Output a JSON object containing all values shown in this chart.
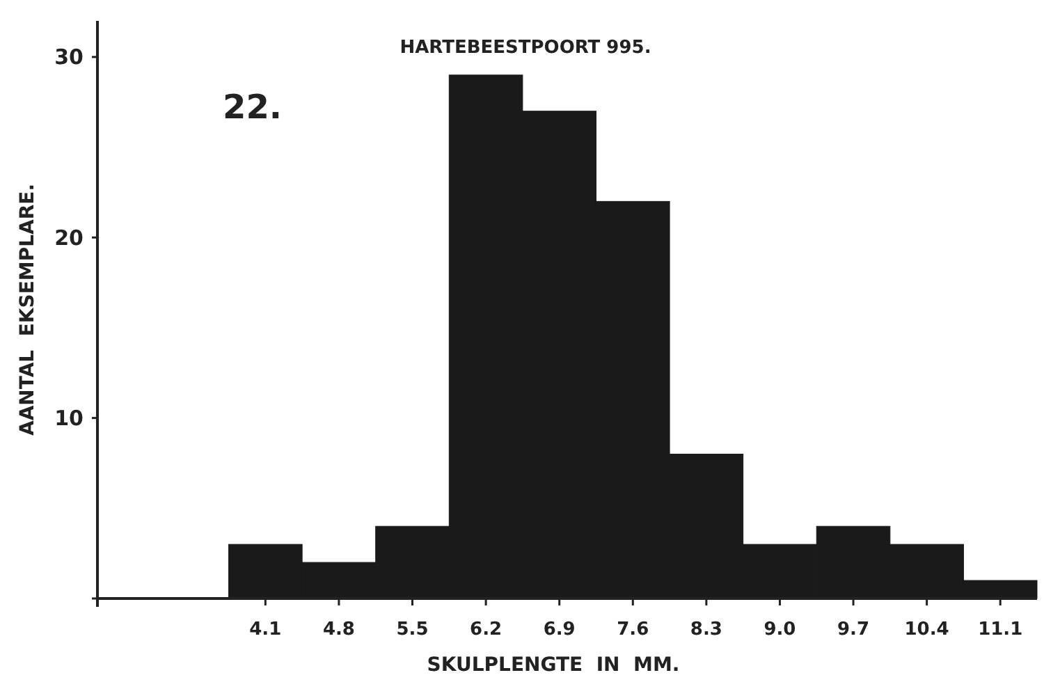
{
  "chart_data": {
    "type": "histogram",
    "title": "HARTEBEESTPOORT 995.",
    "xlabel": "SKULPLENGTE  IN  MM.",
    "ylabel": "AANTAL  EKSEMPLARE.",
    "annotations": [
      "22."
    ],
    "bins": [
      3.75,
      4.45,
      5.15,
      5.85,
      6.55,
      7.25,
      7.95,
      8.65,
      9.35,
      10.05,
      10.75,
      11.45
    ],
    "values": [
      3,
      2,
      4,
      29,
      27,
      22,
      8,
      3,
      4,
      3,
      1
    ],
    "color": "#1a1a1a",
    "xlim": [
      2.5,
      11.45
    ],
    "xticks": [
      4.1,
      4.8,
      5.5,
      6.2,
      6.9,
      7.6,
      8.3,
      {
        "value": 9.0,
        "label": "9.0"
      },
      9.7,
      10.4,
      11.1
    ],
    "ylim": [
      0,
      32
    ],
    "yticks": [
      {
        "value": 0,
        "label": null
      },
      10,
      20,
      30
    ],
    "grid": false
  }
}
